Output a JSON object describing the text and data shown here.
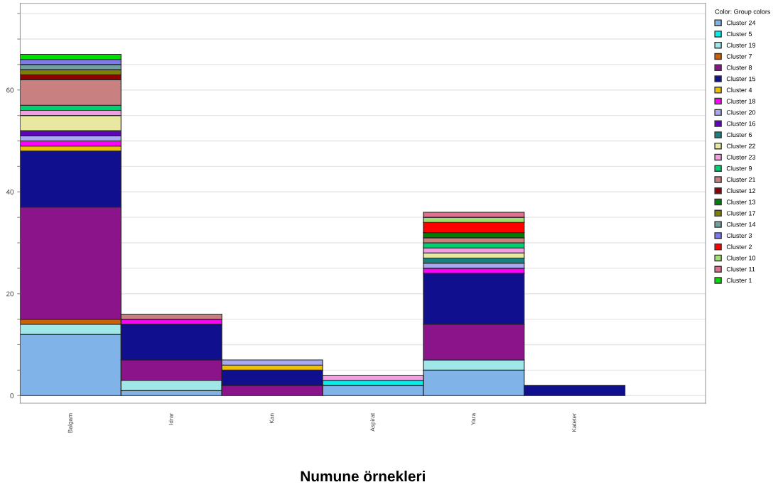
{
  "chart_data": {
    "type": "bar",
    "stacked": true,
    "xlabel": "Numune örnekleri",
    "legend_title": "Color: Group colors",
    "legend": "right",
    "grid": "y",
    "categories": [
      "Balgam",
      "Idrar",
      "Kan",
      "Aspirat",
      "Yara",
      "Kateter"
    ],
    "ylim": [
      -1.5,
      77
    ],
    "yticks": [
      0,
      {
        "value": 5,
        "label": null
      },
      {
        "value": 10,
        "label": null
      },
      {
        "value": 15,
        "label": null
      },
      20,
      {
        "value": 25,
        "label": null
      },
      {
        "value": 30,
        "label": null
      },
      {
        "value": 35,
        "label": null
      },
      40,
      {
        "value": 45,
        "label": null
      },
      {
        "value": 50,
        "label": null
      },
      {
        "value": 55,
        "label": null
      },
      60,
      {
        "value": 65,
        "label": null
      },
      {
        "value": 70,
        "label": null
      },
      {
        "value": 75,
        "label": null
      }
    ],
    "series": [
      {
        "name": "Cluster 24",
        "color": "#80b4e8",
        "values": [
          12,
          1,
          null,
          2,
          5,
          null
        ]
      },
      {
        "name": "Cluster 5",
        "color": "#00f0f0",
        "values": [
          null,
          null,
          null,
          1,
          null,
          null
        ]
      },
      {
        "name": "Cluster 19",
        "color": "#a0e8e8",
        "values": [
          2,
          2,
          null,
          null,
          2,
          null
        ]
      },
      {
        "name": "Cluster 7",
        "color": "#d06000",
        "values": [
          1,
          null,
          null,
          null,
          null,
          null
        ]
      },
      {
        "name": "Cluster 8",
        "color": "#8b148b",
        "values": [
          22,
          4,
          2,
          null,
          7,
          null
        ]
      },
      {
        "name": "Cluster 15",
        "color": "#10108f",
        "values": [
          11,
          7,
          3,
          null,
          10,
          2
        ]
      },
      {
        "name": "Cluster 4",
        "color": "#f0c000",
        "values": [
          1,
          null,
          1,
          null,
          null,
          null
        ]
      },
      {
        "name": "Cluster 18",
        "color": "#ff00ff",
        "values": [
          1,
          1,
          null,
          null,
          1,
          null
        ]
      },
      {
        "name": "Cluster 20",
        "color": "#a8a8f0",
        "values": [
          1,
          null,
          1,
          null,
          1,
          null
        ]
      },
      {
        "name": "Cluster 16",
        "color": "#6000c0",
        "values": [
          1,
          null,
          null,
          null,
          null,
          null
        ]
      },
      {
        "name": "Cluster 6",
        "color": "#1a8080",
        "values": [
          null,
          null,
          null,
          null,
          1,
          null
        ]
      },
      {
        "name": "Cluster 22",
        "color": "#e8e8a0",
        "values": [
          3,
          null,
          null,
          null,
          1,
          null
        ]
      },
      {
        "name": "Cluster 23",
        "color": "#f0a0e0",
        "values": [
          1,
          null,
          null,
          1,
          1,
          null
        ]
      },
      {
        "name": "Cluster 9",
        "color": "#00d070",
        "values": [
          1,
          null,
          null,
          null,
          1,
          null
        ]
      },
      {
        "name": "Cluster 21",
        "color": "#c88080",
        "values": [
          5,
          1,
          null,
          null,
          1,
          null
        ]
      },
      {
        "name": "Cluster 12",
        "color": "#8b0000",
        "values": [
          1,
          null,
          null,
          null,
          null,
          null
        ]
      },
      {
        "name": "Cluster 13",
        "color": "#008000",
        "values": [
          null,
          null,
          null,
          null,
          1,
          null
        ]
      },
      {
        "name": "Cluster 17",
        "color": "#808000",
        "values": [
          1,
          null,
          null,
          null,
          null,
          null
        ]
      },
      {
        "name": "Cluster 14",
        "color": "#70a0a0",
        "values": [
          1,
          null,
          null,
          null,
          null,
          null
        ]
      },
      {
        "name": "Cluster 3",
        "color": "#7b7bef",
        "values": [
          1,
          null,
          null,
          null,
          null,
          null
        ]
      },
      {
        "name": "Cluster 2",
        "color": "#ff0000",
        "values": [
          null,
          null,
          null,
          null,
          2,
          null
        ]
      },
      {
        "name": "Cluster 10",
        "color": "#a0e070",
        "values": [
          null,
          null,
          null,
          null,
          1,
          null
        ]
      },
      {
        "name": "Cluster 11",
        "color": "#e07090",
        "values": [
          null,
          null,
          null,
          null,
          1,
          null
        ]
      },
      {
        "name": "Cluster 1",
        "color": "#00dd00",
        "values": [
          1,
          null,
          null,
          null,
          null,
          null
        ]
      }
    ]
  }
}
